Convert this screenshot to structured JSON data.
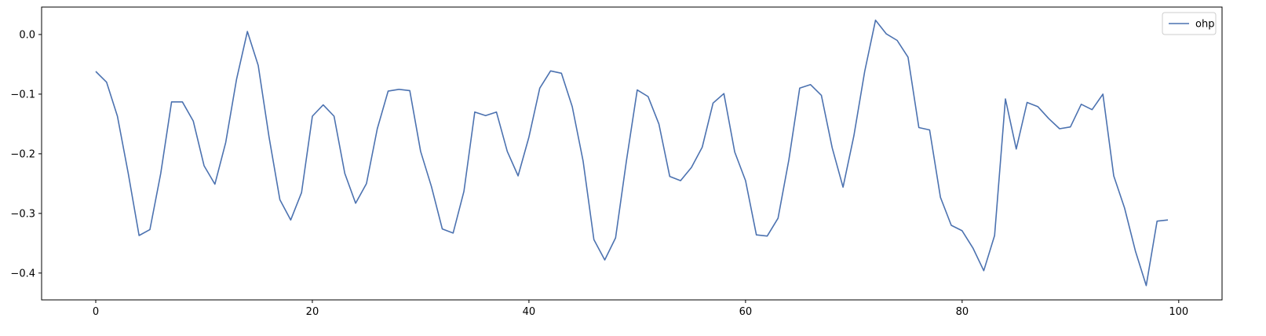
{
  "chart_data": {
    "type": "line",
    "title": "",
    "xlabel": "",
    "ylabel": "",
    "xlim": [
      -5,
      104
    ],
    "ylim": [
      -0.445,
      0.046
    ],
    "xticks": [
      0,
      20,
      40,
      60,
      80,
      100
    ],
    "yticks": [
      0.0,
      -0.1,
      -0.2,
      -0.3,
      -0.4
    ],
    "xtick_labels": [
      "0",
      "20",
      "40",
      "60",
      "80",
      "100"
    ],
    "ytick_labels": [
      "0.0",
      "−0.1",
      "−0.2",
      "−0.3",
      "−0.4"
    ],
    "grid": false,
    "legend_position": "top-right",
    "series": [
      {
        "name": "ohp",
        "color": "#4c72b0",
        "x": [
          0,
          1,
          2,
          3,
          4,
          5,
          6,
          7,
          8,
          9,
          10,
          11,
          12,
          13,
          14,
          15,
          16,
          17,
          18,
          19,
          20,
          21,
          22,
          23,
          24,
          25,
          26,
          27,
          28,
          29,
          30,
          31,
          32,
          33,
          34,
          35,
          36,
          37,
          38,
          39,
          40,
          41,
          42,
          43,
          44,
          45,
          46,
          47,
          48,
          49,
          50,
          51,
          52,
          53,
          54,
          55,
          56,
          57,
          58,
          59,
          60,
          61,
          62,
          63,
          64,
          65,
          66,
          67,
          68,
          69,
          70,
          71,
          72,
          73,
          74,
          75,
          76,
          77,
          78,
          79,
          80,
          81,
          82,
          83,
          84,
          85,
          86,
          87,
          88,
          89,
          90,
          91,
          92,
          93,
          94,
          95,
          96,
          97,
          98,
          99
        ],
        "values": [
          -0.062,
          -0.08,
          -0.137,
          -0.233,
          -0.337,
          -0.327,
          -0.233,
          -0.113,
          -0.113,
          -0.145,
          -0.22,
          -0.251,
          -0.181,
          -0.075,
          0.005,
          -0.052,
          -0.172,
          -0.277,
          -0.311,
          -0.265,
          -0.137,
          -0.118,
          -0.137,
          -0.233,
          -0.283,
          -0.25,
          -0.158,
          -0.095,
          -0.092,
          -0.094,
          -0.196,
          -0.255,
          -0.326,
          -0.333,
          -0.263,
          -0.13,
          -0.136,
          -0.13,
          -0.196,
          -0.237,
          -0.172,
          -0.09,
          -0.061,
          -0.065,
          -0.121,
          -0.212,
          -0.344,
          -0.378,
          -0.341,
          -0.212,
          -0.093,
          -0.104,
          -0.15,
          -0.238,
          -0.245,
          -0.223,
          -0.189,
          -0.115,
          -0.099,
          -0.197,
          -0.245,
          -0.336,
          -0.338,
          -0.308,
          -0.21,
          -0.09,
          -0.084,
          -0.102,
          -0.19,
          -0.256,
          -0.17,
          -0.062,
          0.024,
          0.001,
          -0.01,
          -0.038,
          -0.156,
          -0.16,
          -0.273,
          -0.32,
          -0.329,
          -0.358,
          -0.396,
          -0.337,
          -0.108,
          -0.192,
          -0.114,
          -0.121,
          -0.141,
          -0.158,
          -0.155,
          -0.117,
          -0.126,
          -0.1,
          -0.237,
          -0.291,
          -0.363,
          -0.421,
          -0.313,
          -0.311
        ]
      }
    ]
  }
}
